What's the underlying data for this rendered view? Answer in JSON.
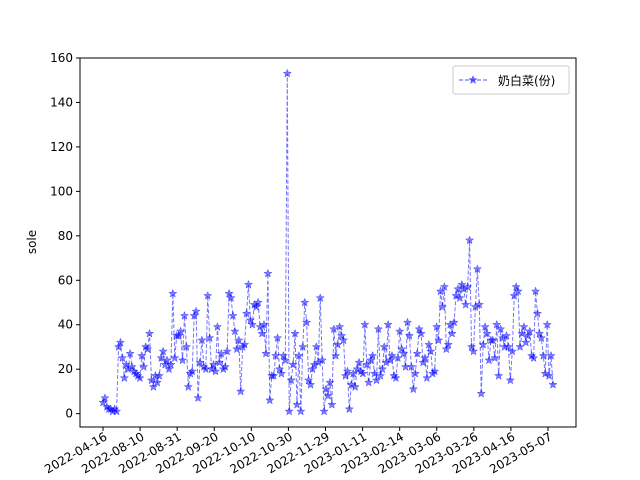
{
  "chart_data": {
    "type": "line",
    "title": "",
    "xlabel": "",
    "ylabel": "sole",
    "ylim": [
      -6,
      160
    ],
    "yticks": [
      0,
      20,
      40,
      60,
      80,
      100,
      120,
      140,
      160
    ],
    "xtick_labels": [
      "2022-04-16",
      "2022-08-10",
      "2022-08-31",
      "2022-09-20",
      "2022-10-10",
      "2022-10-30",
      "2022-11-29",
      "2023-01-11",
      "2023-02-14",
      "2023-03-06",
      "2023-03-26",
      "2023-04-16",
      "2023-05-07"
    ],
    "grid": false,
    "legend": "upper-right",
    "series": [
      {
        "name": "奶白菜(份)",
        "color": "#0000ff",
        "marker": "star",
        "linestyle": "dashed",
        "values": [
          5,
          7,
          3,
          2,
          2,
          1,
          2,
          1,
          30,
          32,
          25,
          16,
          22,
          20,
          27,
          21,
          19,
          18,
          17,
          16,
          26,
          21,
          30,
          29,
          36,
          15,
          12,
          17,
          14,
          17,
          25,
          28,
          22,
          24,
          20,
          22,
          54,
          25,
          35,
          35,
          37,
          24,
          44,
          30,
          12,
          18,
          19,
          44,
          46,
          7,
          23,
          33,
          21,
          20,
          53,
          34,
          20,
          22,
          19,
          39,
          23,
          27,
          20,
          21,
          28,
          54,
          52,
          44,
          37,
          29,
          33,
          10,
          30,
          31,
          45,
          58,
          42,
          40,
          49,
          48,
          50,
          39,
          36,
          40,
          27,
          63,
          6,
          17,
          17,
          26,
          34,
          20,
          18,
          26,
          24,
          153,
          1,
          15,
          22,
          36,
          4,
          26,
          1,
          30,
          50,
          41,
          15,
          13,
          20,
          22,
          30,
          23,
          52,
          24,
          1,
          11,
          8,
          14,
          4,
          38,
          26,
          31,
          39,
          35,
          33,
          17,
          19,
          2,
          13,
          18,
          12,
          20,
          23,
          19,
          18,
          40,
          22,
          14,
          24,
          26,
          18,
          15,
          38,
          17,
          20,
          30,
          23,
          40,
          24,
          26,
          17,
          16,
          25,
          37,
          29,
          27,
          21,
          41,
          35,
          21,
          11,
          18,
          27,
          38,
          36,
          23,
          25,
          16,
          31,
          28,
          18,
          19,
          39,
          33,
          55,
          48,
          57,
          29,
          31,
          40,
          36,
          41,
          53,
          56,
          52,
          58,
          56,
          49,
          57,
          78,
          30,
          28,
          48,
          65,
          49,
          9,
          31,
          39,
          36,
          24,
          33,
          33,
          25,
          40,
          17,
          38,
          34,
          30,
          35,
          30,
          15,
          28,
          53,
          57,
          55,
          30,
          36,
          39,
          32,
          35,
          37,
          26,
          25,
          55,
          45,
          36,
          34,
          26,
          18,
          40,
          17,
          26,
          13
        ]
      }
    ]
  }
}
